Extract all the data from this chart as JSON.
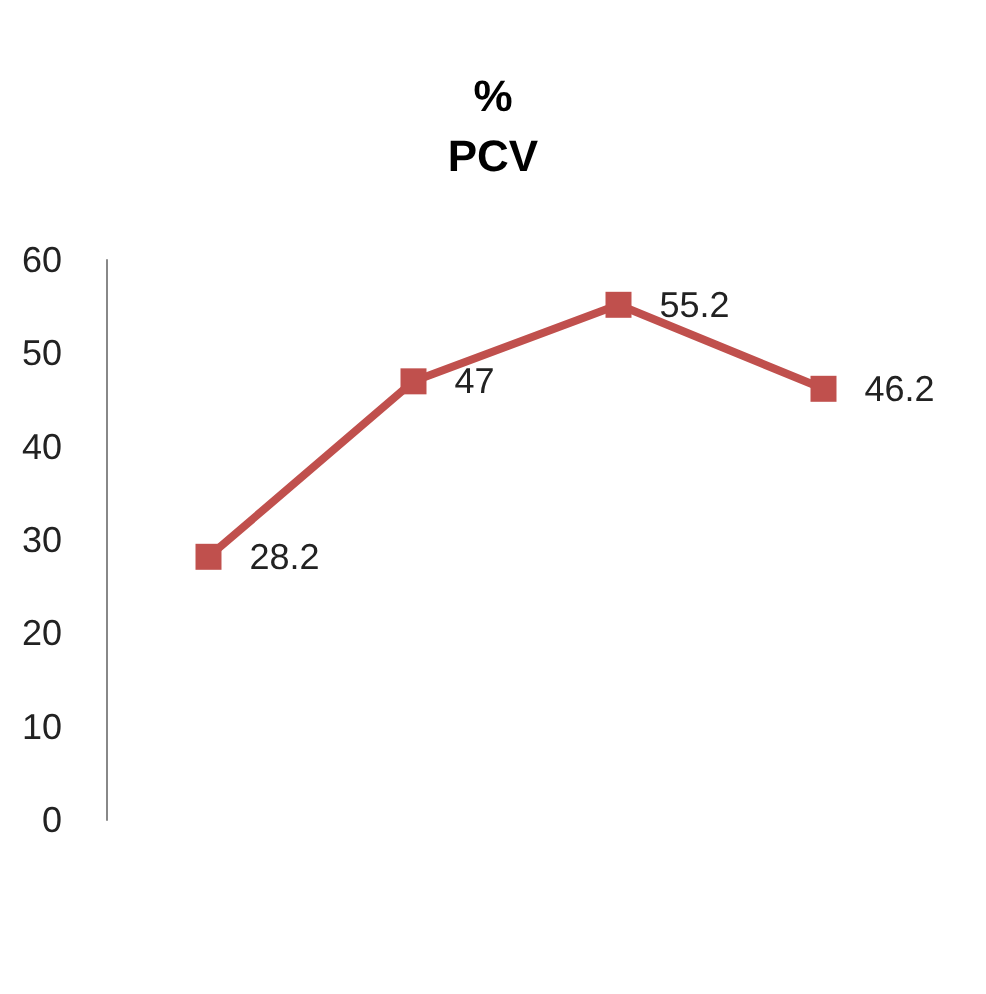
{
  "chart_data": {
    "type": "line",
    "title": "%\nPCV",
    "categories": [
      null,
      null,
      null,
      null
    ],
    "series": [
      {
        "color": "#c0504d",
        "values": [
          28.2,
          47,
          55.2,
          46.2
        ]
      }
    ],
    "ylim": [
      0,
      60
    ],
    "yticks": [
      0,
      10,
      20,
      30,
      40,
      50,
      60
    ],
    "grid": false,
    "marker": "square",
    "data_labels": true
  }
}
